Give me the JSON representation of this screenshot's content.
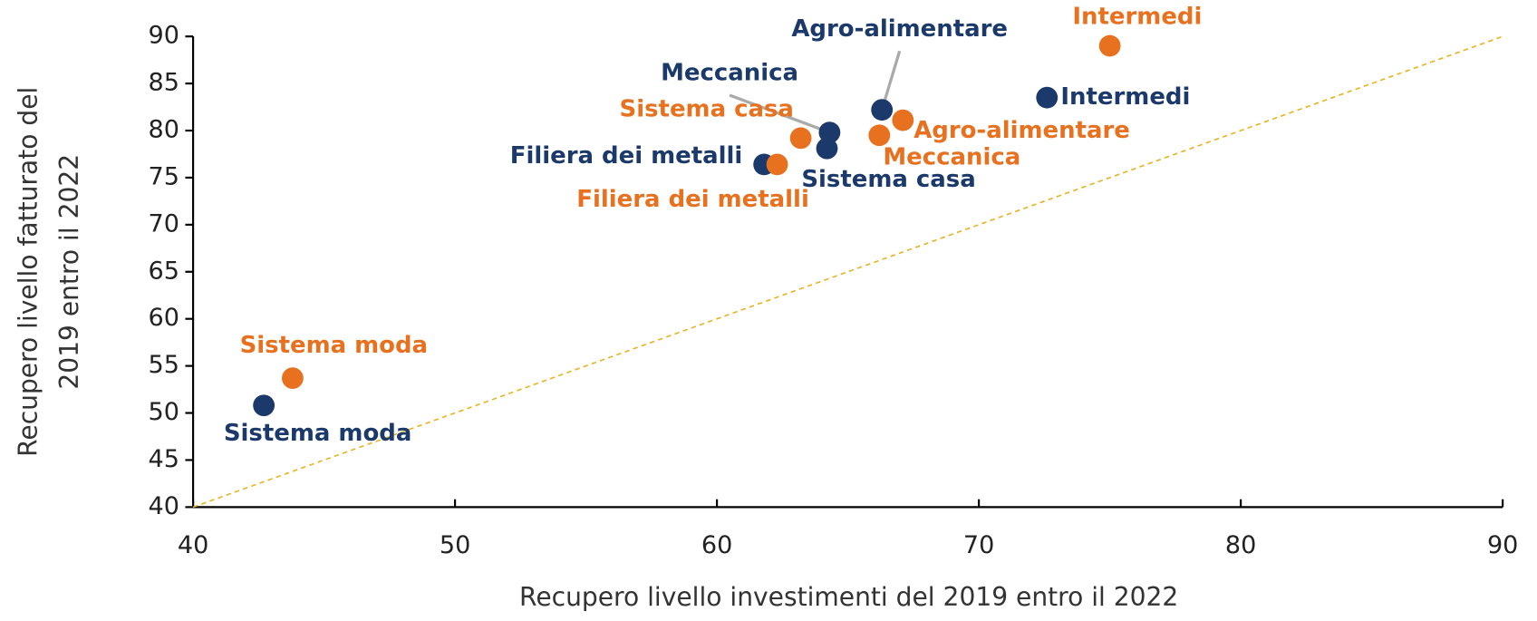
{
  "chart_data": {
    "type": "scatter",
    "xlabel": "Recupero livello investimenti del 2019 entro il 2022",
    "ylabel": [
      "Recupero livello fatturato del",
      "2019 entro il 2022"
    ],
    "xlim": [
      40,
      90
    ],
    "ylim": [
      40,
      90
    ],
    "xticks": [
      40,
      50,
      60,
      70,
      80,
      90
    ],
    "yticks": [
      40,
      45,
      50,
      55,
      60,
      65,
      70,
      75,
      80,
      85,
      90
    ],
    "reference_line": {
      "x": [
        40,
        90
      ],
      "y": [
        40,
        90
      ],
      "color": "#e6b422"
    },
    "series": [
      {
        "color": "#1b3a6b",
        "labels": [
          "Sistema moda",
          "Filiera dei metalli",
          "Sistema casa",
          "Meccanica",
          "Agro-alimentare",
          "Intermedi"
        ],
        "x": [
          42.7,
          61.8,
          64.2,
          64.3,
          66.3,
          72.6
        ],
        "values": [
          50.8,
          76.4,
          78.1,
          79.8,
          82.2,
          83.5
        ]
      },
      {
        "color": "#e8711f",
        "labels": [
          "Sistema moda",
          "Filiera dei metalli",
          "Sistema casa",
          "Meccanica",
          "Agro-alimentare",
          "Intermedi"
        ],
        "x": [
          43.8,
          62.3,
          63.2,
          66.2,
          67.1,
          75.0
        ],
        "values": [
          53.7,
          76.4,
          79.2,
          79.5,
          81.1,
          89.0
        ]
      }
    ]
  }
}
